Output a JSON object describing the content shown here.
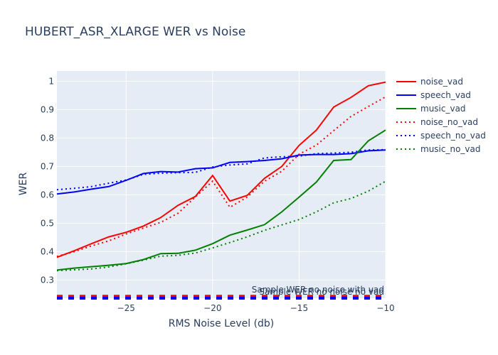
{
  "chart_data": {
    "type": "line",
    "title": "HUBERT_ASR_XLARGE WER vs Noise",
    "xlabel": "RMS Noise Level (db)",
    "ylabel": "WER",
    "xlim": [
      -29,
      -10
    ],
    "ylim": [
      0.236,
      1.036
    ],
    "x_ticks": [
      -25,
      -20,
      -15,
      -10
    ],
    "x_tick_labels": [
      "−25",
      "−20",
      "−15",
      "−10"
    ],
    "y_ticks": [
      0.3,
      0.4,
      0.5,
      0.6,
      0.7,
      0.8,
      0.9,
      1
    ],
    "y_tick_labels": [
      "0.3",
      "0.4",
      "0.5",
      "0.6",
      "0.7",
      "0.8",
      "0.9",
      "1"
    ],
    "grid": true,
    "legend_position": "right",
    "x": [
      -29,
      -28,
      -27,
      -26,
      -25,
      -24,
      -23,
      -22,
      -21,
      -20,
      -19,
      -18,
      -17,
      -16,
      -15,
      -14,
      -13,
      -12,
      -11,
      -10
    ],
    "series": [
      {
        "name": "noise_vad",
        "color": "#ff0000",
        "dash": "solid",
        "values": [
          0.38,
          0.403,
          0.428,
          0.452,
          0.468,
          0.49,
          0.52,
          0.563,
          0.594,
          0.668,
          0.578,
          0.598,
          0.658,
          0.7,
          0.774,
          0.828,
          0.909,
          0.943,
          0.984,
          0.997
        ]
      },
      {
        "name": "speech_vad",
        "color": "#0000ff",
        "dash": "solid",
        "values": [
          0.603,
          0.61,
          0.62,
          0.629,
          0.651,
          0.675,
          0.682,
          0.68,
          0.692,
          0.695,
          0.714,
          0.717,
          0.721,
          0.727,
          0.74,
          0.742,
          0.742,
          0.745,
          0.755,
          0.758
        ]
      },
      {
        "name": "music_vad",
        "color": "#008000",
        "dash": "solid",
        "values": [
          0.335,
          0.342,
          0.347,
          0.352,
          0.358,
          0.372,
          0.393,
          0.394,
          0.405,
          0.428,
          0.458,
          0.476,
          0.495,
          0.54,
          0.592,
          0.645,
          0.721,
          0.724,
          0.79,
          0.828
        ]
      },
      {
        "name": "noise_no_vad",
        "color": "#ff0000",
        "dash": "dot",
        "values": [
          0.383,
          0.4,
          0.42,
          0.438,
          0.462,
          0.483,
          0.503,
          0.535,
          0.592,
          0.648,
          0.556,
          0.592,
          0.648,
          0.683,
          0.743,
          0.775,
          0.826,
          0.876,
          0.911,
          0.945
        ]
      },
      {
        "name": "speech_no_vad",
        "color": "#0000ff",
        "dash": "dot",
        "values": [
          0.618,
          0.623,
          0.629,
          0.641,
          0.652,
          0.672,
          0.676,
          0.678,
          0.679,
          0.698,
          0.705,
          0.709,
          0.73,
          0.734,
          0.736,
          0.745,
          0.747,
          0.75,
          0.758,
          0.759
        ]
      },
      {
        "name": "music_no_vad",
        "color": "#008000",
        "dash": "dot",
        "values": [
          0.333,
          0.336,
          0.339,
          0.346,
          0.357,
          0.37,
          0.384,
          0.387,
          0.395,
          0.413,
          0.432,
          0.452,
          0.475,
          0.494,
          0.513,
          0.54,
          0.572,
          0.587,
          0.613,
          0.648
        ]
      }
    ],
    "reference_lines": [
      {
        "label": "Sample WER no noise with vad",
        "value": 0.243,
        "color": "#ff0000"
      },
      {
        "label": "Sample WER no noise no vad",
        "value": 0.236,
        "color": "#0000ff"
      }
    ]
  }
}
